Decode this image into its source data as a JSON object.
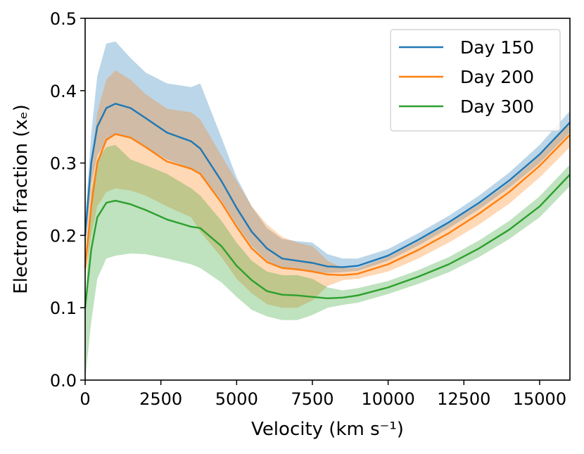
{
  "chart_data": {
    "type": "line",
    "title": "",
    "xlabel": "Velocity (km s⁻¹)",
    "ylabel": "Electron fraction (xₑ)",
    "xlim": [
      0,
      16000
    ],
    "ylim": [
      0.0,
      0.5
    ],
    "xticks": [
      0,
      2500,
      5000,
      7500,
      10000,
      12500,
      15000
    ],
    "xtick_labels": [
      "0",
      "2500",
      "5000",
      "7500",
      "10000",
      "12500",
      "15000"
    ],
    "yticks": [
      0.0,
      0.1,
      0.2,
      0.3,
      0.4,
      0.5
    ],
    "ytick_labels": [
      "0.0",
      "0.1",
      "0.2",
      "0.3",
      "0.4",
      "0.5"
    ],
    "legend_position": "top-right",
    "grid": false,
    "series": [
      {
        "name": "Day 150",
        "color": "#1f77b4",
        "x": [
          0,
          200,
          400,
          700,
          1000,
          1500,
          2000,
          2700,
          3500,
          3800,
          4500,
          5000,
          5500,
          6000,
          6500,
          7000,
          7500,
          8000,
          8500,
          9000,
          10000,
          11000,
          12000,
          13000,
          14000,
          15000,
          16000
        ],
        "y": [
          0.2,
          0.3,
          0.35,
          0.376,
          0.382,
          0.376,
          0.362,
          0.342,
          0.33,
          0.32,
          0.275,
          0.238,
          0.205,
          0.182,
          0.168,
          0.165,
          0.162,
          0.157,
          0.156,
          0.158,
          0.172,
          0.194,
          0.218,
          0.245,
          0.276,
          0.312,
          0.356
        ],
        "lower": [
          0.18,
          0.27,
          0.31,
          0.33,
          0.34,
          0.336,
          0.322,
          0.305,
          0.292,
          0.286,
          0.248,
          0.215,
          0.185,
          0.165,
          0.155,
          0.152,
          0.15,
          0.148,
          0.149,
          0.151,
          0.165,
          0.186,
          0.21,
          0.236,
          0.266,
          0.3,
          0.342
        ],
        "upper": [
          0.22,
          0.34,
          0.42,
          0.465,
          0.468,
          0.445,
          0.425,
          0.41,
          0.405,
          0.41,
          0.335,
          0.28,
          0.24,
          0.21,
          0.195,
          0.192,
          0.19,
          0.174,
          0.168,
          0.168,
          0.181,
          0.203,
          0.227,
          0.255,
          0.287,
          0.325,
          0.372
        ]
      },
      {
        "name": "Day 200",
        "color": "#ff7f0e",
        "x": [
          0,
          200,
          400,
          700,
          1000,
          1500,
          2000,
          2700,
          3500,
          3800,
          4500,
          5000,
          5500,
          6000,
          6500,
          7000,
          7500,
          8000,
          8500,
          9000,
          10000,
          11000,
          12000,
          13000,
          14000,
          15000,
          16000
        ],
        "y": [
          0.155,
          0.24,
          0.3,
          0.332,
          0.34,
          0.335,
          0.322,
          0.302,
          0.292,
          0.285,
          0.245,
          0.212,
          0.182,
          0.163,
          0.155,
          0.153,
          0.15,
          0.146,
          0.145,
          0.147,
          0.16,
          0.18,
          0.203,
          0.23,
          0.26,
          0.296,
          0.339
        ],
        "lower": [
          0.14,
          0.2,
          0.24,
          0.26,
          0.265,
          0.262,
          0.255,
          0.24,
          0.225,
          0.205,
          0.17,
          0.14,
          0.12,
          0.105,
          0.1,
          0.1,
          0.11,
          0.13,
          0.138,
          0.14,
          0.15,
          0.168,
          0.19,
          0.215,
          0.244,
          0.28,
          0.322
        ],
        "upper": [
          0.17,
          0.3,
          0.37,
          0.415,
          0.428,
          0.415,
          0.395,
          0.375,
          0.37,
          0.36,
          0.31,
          0.275,
          0.24,
          0.215,
          0.198,
          0.19,
          0.185,
          0.165,
          0.155,
          0.155,
          0.17,
          0.192,
          0.216,
          0.243,
          0.273,
          0.31,
          0.355
        ]
      },
      {
        "name": "Day 300",
        "color": "#2ca02c",
        "x": [
          0,
          200,
          400,
          700,
          1000,
          1500,
          2000,
          2700,
          3500,
          3800,
          4500,
          5000,
          5500,
          6000,
          6500,
          7000,
          7500,
          8000,
          8500,
          9000,
          10000,
          11000,
          12000,
          13000,
          14000,
          15000,
          16000
        ],
        "y": [
          0.1,
          0.18,
          0.225,
          0.245,
          0.248,
          0.243,
          0.235,
          0.222,
          0.212,
          0.21,
          0.185,
          0.158,
          0.138,
          0.123,
          0.118,
          0.117,
          0.115,
          0.113,
          0.114,
          0.117,
          0.128,
          0.143,
          0.16,
          0.182,
          0.208,
          0.24,
          0.284
        ],
        "lower": [
          0.0,
          0.08,
          0.14,
          0.168,
          0.172,
          0.175,
          0.174,
          0.168,
          0.16,
          0.155,
          0.135,
          0.115,
          0.097,
          0.088,
          0.083,
          0.083,
          0.09,
          0.1,
          0.104,
          0.107,
          0.119,
          0.133,
          0.149,
          0.17,
          0.195,
          0.225,
          0.268
        ],
        "upper": [
          0.1,
          0.26,
          0.305,
          0.322,
          0.325,
          0.305,
          0.297,
          0.285,
          0.265,
          0.255,
          0.22,
          0.19,
          0.165,
          0.15,
          0.145,
          0.145,
          0.14,
          0.128,
          0.124,
          0.127,
          0.137,
          0.152,
          0.17,
          0.193,
          0.22,
          0.254,
          0.298
        ]
      }
    ]
  }
}
